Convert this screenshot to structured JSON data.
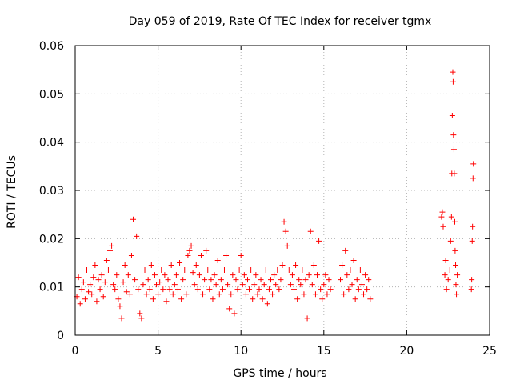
{
  "chart_data": {
    "type": "scatter",
    "title": "Day 059 of 2019, Rate Of TEC Index for receiver tgmx",
    "xlabel": "GPS time / hours",
    "ylabel": "ROTI / TECUs",
    "xlim": [
      0,
      25
    ],
    "ylim": [
      0,
      0.06
    ],
    "xticks": [
      "0",
      "5",
      "10",
      "15",
      "20",
      "25"
    ],
    "yticks": [
      "0",
      "0.01",
      "0.02",
      "0.03",
      "0.04",
      "0.05",
      "0.06"
    ],
    "grid": true,
    "marker": "+",
    "color": "#ff0000",
    "series": [
      {
        "name": "ROTI",
        "points": [
          [
            0.1,
            0.008
          ],
          [
            0.2,
            0.012
          ],
          [
            0.3,
            0.0065
          ],
          [
            0.4,
            0.0095
          ],
          [
            0.5,
            0.011
          ],
          [
            0.6,
            0.0075
          ],
          [
            0.7,
            0.0135
          ],
          [
            0.8,
            0.009
          ],
          [
            0.9,
            0.0105
          ],
          [
            1.0,
            0.0085
          ],
          [
            1.1,
            0.012
          ],
          [
            1.2,
            0.0145
          ],
          [
            1.3,
            0.007
          ],
          [
            1.4,
            0.0115
          ],
          [
            1.5,
            0.0095
          ],
          [
            1.6,
            0.0125
          ],
          [
            1.7,
            0.008
          ],
          [
            1.8,
            0.011
          ],
          [
            1.9,
            0.0155
          ],
          [
            2.0,
            0.0135
          ],
          [
            2.1,
            0.0175
          ],
          [
            2.2,
            0.0185
          ],
          [
            2.3,
            0.0105
          ],
          [
            2.4,
            0.0095
          ],
          [
            2.5,
            0.0125
          ],
          [
            2.6,
            0.0075
          ],
          [
            2.7,
            0.006
          ],
          [
            2.8,
            0.0035
          ],
          [
            2.9,
            0.011
          ],
          [
            3.0,
            0.0145
          ],
          [
            3.1,
            0.009
          ],
          [
            3.2,
            0.0125
          ],
          [
            3.3,
            0.0085
          ],
          [
            3.4,
            0.0165
          ],
          [
            3.5,
            0.024
          ],
          [
            3.6,
            0.0115
          ],
          [
            3.7,
            0.0205
          ],
          [
            3.8,
            0.0095
          ],
          [
            3.9,
            0.0045
          ],
          [
            4.0,
            0.0035
          ],
          [
            4.1,
            0.0105
          ],
          [
            4.2,
            0.0135
          ],
          [
            4.3,
            0.0085
          ],
          [
            4.4,
            0.0115
          ],
          [
            4.5,
            0.0095
          ],
          [
            4.6,
            0.0145
          ],
          [
            4.7,
            0.0075
          ],
          [
            4.8,
            0.0125
          ],
          [
            4.9,
            0.0105
          ],
          [
            5.0,
            0.0085
          ],
          [
            5.1,
            0.011
          ],
          [
            5.2,
            0.0135
          ],
          [
            5.3,
            0.0095
          ],
          [
            5.4,
            0.0125
          ],
          [
            5.5,
            0.007
          ],
          [
            5.6,
            0.0115
          ],
          [
            5.7,
            0.0095
          ],
          [
            5.8,
            0.0145
          ],
          [
            5.9,
            0.0085
          ],
          [
            6.0,
            0.0105
          ],
          [
            6.1,
            0.0125
          ],
          [
            6.2,
            0.0095
          ],
          [
            6.3,
            0.015
          ],
          [
            6.4,
            0.0075
          ],
          [
            6.5,
            0.0115
          ],
          [
            6.6,
            0.0135
          ],
          [
            6.7,
            0.0085
          ],
          [
            6.8,
            0.0165
          ],
          [
            6.9,
            0.0175
          ],
          [
            7.0,
            0.0185
          ],
          [
            7.1,
            0.013
          ],
          [
            7.2,
            0.0105
          ],
          [
            7.3,
            0.0145
          ],
          [
            7.4,
            0.0095
          ],
          [
            7.5,
            0.0125
          ],
          [
            7.6,
            0.0165
          ],
          [
            7.7,
            0.0085
          ],
          [
            7.8,
            0.0115
          ],
          [
            7.9,
            0.0175
          ],
          [
            8.0,
            0.0135
          ],
          [
            8.1,
            0.0095
          ],
          [
            8.2,
            0.0115
          ],
          [
            8.3,
            0.0075
          ],
          [
            8.4,
            0.0125
          ],
          [
            8.5,
            0.0105
          ],
          [
            8.6,
            0.0155
          ],
          [
            8.7,
            0.0085
          ],
          [
            8.8,
            0.0115
          ],
          [
            8.9,
            0.0095
          ],
          [
            9.0,
            0.0135
          ],
          [
            9.1,
            0.0165
          ],
          [
            9.2,
            0.0105
          ],
          [
            9.3,
            0.0055
          ],
          [
            9.4,
            0.0085
          ],
          [
            9.5,
            0.0125
          ],
          [
            9.6,
            0.0045
          ],
          [
            9.7,
            0.0115
          ],
          [
            9.8,
            0.0095
          ],
          [
            9.9,
            0.0135
          ],
          [
            10.0,
            0.0165
          ],
          [
            10.1,
            0.0105
          ],
          [
            10.2,
            0.0125
          ],
          [
            10.3,
            0.0085
          ],
          [
            10.4,
            0.0115
          ],
          [
            10.5,
            0.0095
          ],
          [
            10.6,
            0.0135
          ],
          [
            10.7,
            0.0075
          ],
          [
            10.8,
            0.0105
          ],
          [
            10.9,
            0.0125
          ],
          [
            11.0,
            0.0085
          ],
          [
            11.1,
            0.0095
          ],
          [
            11.2,
            0.0115
          ],
          [
            11.3,
            0.0075
          ],
          [
            11.4,
            0.0105
          ],
          [
            11.5,
            0.0135
          ],
          [
            11.6,
            0.0065
          ],
          [
            11.7,
            0.0095
          ],
          [
            11.8,
            0.0115
          ],
          [
            11.9,
            0.0085
          ],
          [
            12.0,
            0.0125
          ],
          [
            12.1,
            0.0105
          ],
          [
            12.2,
            0.0135
          ],
          [
            12.3,
            0.0095
          ],
          [
            12.4,
            0.0115
          ],
          [
            12.5,
            0.0145
          ],
          [
            12.6,
            0.0235
          ],
          [
            12.7,
            0.0215
          ],
          [
            12.8,
            0.0185
          ],
          [
            12.9,
            0.0135
          ],
          [
            13.0,
            0.0105
          ],
          [
            13.1,
            0.0125
          ],
          [
            13.2,
            0.0095
          ],
          [
            13.3,
            0.0145
          ],
          [
            13.4,
            0.0075
          ],
          [
            13.5,
            0.0115
          ],
          [
            13.6,
            0.0105
          ],
          [
            13.7,
            0.0135
          ],
          [
            13.8,
            0.0085
          ],
          [
            13.9,
            0.0115
          ],
          [
            14.0,
            0.0035
          ],
          [
            14.1,
            0.0125
          ],
          [
            14.2,
            0.0215
          ],
          [
            14.3,
            0.0105
          ],
          [
            14.4,
            0.0145
          ],
          [
            14.5,
            0.0085
          ],
          [
            14.6,
            0.0125
          ],
          [
            14.7,
            0.0195
          ],
          [
            14.8,
            0.0095
          ],
          [
            14.9,
            0.0075
          ],
          [
            15.0,
            0.0105
          ],
          [
            15.1,
            0.0125
          ],
          [
            15.2,
            0.0085
          ],
          [
            15.3,
            0.0115
          ],
          [
            15.4,
            0.0095
          ],
          [
            16.0,
            0.0115
          ],
          [
            16.1,
            0.0145
          ],
          [
            16.2,
            0.0085
          ],
          [
            16.3,
            0.0175
          ],
          [
            16.4,
            0.0125
          ],
          [
            16.5,
            0.0095
          ],
          [
            16.6,
            0.0135
          ],
          [
            16.7,
            0.0105
          ],
          [
            16.8,
            0.0155
          ],
          [
            16.9,
            0.0075
          ],
          [
            17.0,
            0.0115
          ],
          [
            17.1,
            0.0095
          ],
          [
            17.2,
            0.0135
          ],
          [
            17.3,
            0.0105
          ],
          [
            17.4,
            0.0085
          ],
          [
            17.5,
            0.0125
          ],
          [
            17.6,
            0.0095
          ],
          [
            17.7,
            0.0115
          ],
          [
            17.8,
            0.0075
          ],
          [
            22.1,
            0.0245
          ],
          [
            22.15,
            0.0255
          ],
          [
            22.2,
            0.0225
          ],
          [
            22.3,
            0.0125
          ],
          [
            22.35,
            0.0155
          ],
          [
            22.4,
            0.0095
          ],
          [
            22.5,
            0.0115
          ],
          [
            22.6,
            0.0135
          ],
          [
            22.65,
            0.0195
          ],
          [
            22.7,
            0.0245
          ],
          [
            22.72,
            0.0335
          ],
          [
            22.75,
            0.0455
          ],
          [
            22.78,
            0.0545
          ],
          [
            22.8,
            0.0525
          ],
          [
            22.82,
            0.0415
          ],
          [
            22.85,
            0.0385
          ],
          [
            22.87,
            0.0335
          ],
          [
            22.9,
            0.0235
          ],
          [
            22.92,
            0.0175
          ],
          [
            22.95,
            0.0145
          ],
          [
            22.97,
            0.0105
          ],
          [
            23.0,
            0.0085
          ],
          [
            23.05,
            0.0125
          ],
          [
            23.9,
            0.0095
          ],
          [
            23.92,
            0.0115
          ],
          [
            23.95,
            0.0195
          ],
          [
            23.97,
            0.0225
          ],
          [
            24.0,
            0.0325
          ],
          [
            24.02,
            0.0355
          ]
        ]
      }
    ]
  }
}
